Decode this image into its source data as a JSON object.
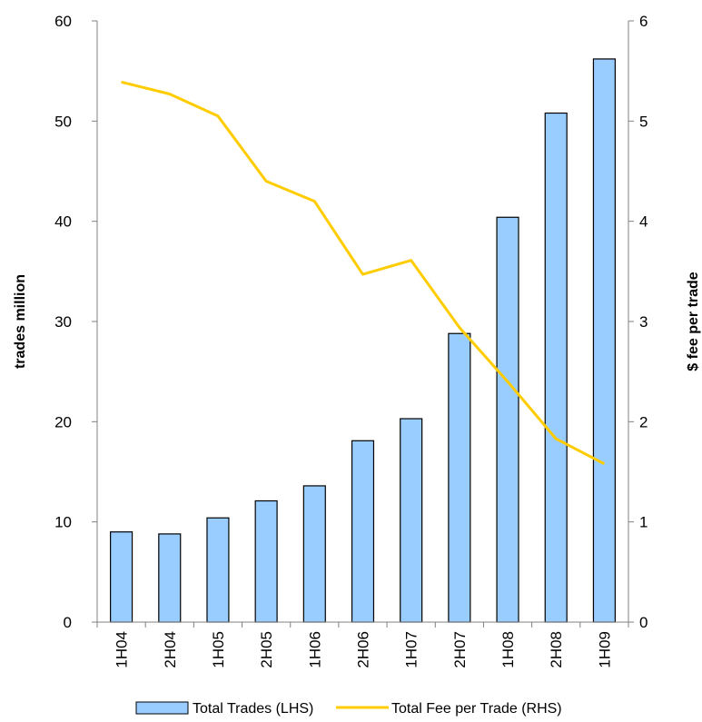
{
  "chart_data": {
    "type": "bar",
    "categories": [
      "1H04",
      "2H04",
      "1H05",
      "2H05",
      "1H06",
      "2H06",
      "1H07",
      "2H07",
      "1H08",
      "2H08",
      "1H09"
    ],
    "series": [
      {
        "name": "Total Trades (LHS)",
        "type": "bar",
        "axis": "left",
        "color": "#99ccff",
        "values": [
          9.0,
          8.8,
          10.4,
          12.1,
          13.6,
          18.1,
          20.3,
          28.8,
          40.4,
          50.8,
          56.2
        ]
      },
      {
        "name": "Total Fee per Trade (RHS)",
        "type": "line",
        "axis": "right",
        "color": "#ffcc00",
        "values": [
          5.39,
          5.27,
          5.05,
          4.4,
          4.2,
          3.47,
          3.61,
          2.94,
          2.4,
          1.83,
          1.58
        ]
      }
    ],
    "y_left": {
      "label": "trades million",
      "ylim": [
        0,
        60
      ],
      "ticks": [
        0,
        10,
        20,
        30,
        40,
        50,
        60
      ]
    },
    "y_right": {
      "label": "$ fee per trade",
      "ylim": [
        0,
        6
      ],
      "ticks": [
        0,
        1,
        2,
        3,
        4,
        5,
        6
      ]
    },
    "grid": false,
    "legend_position": "bottom"
  }
}
